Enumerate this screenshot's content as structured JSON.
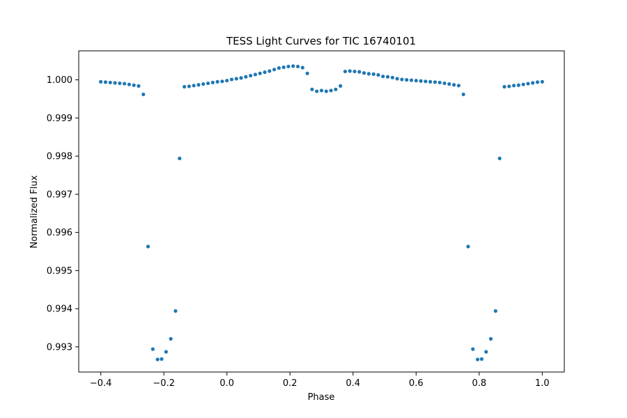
{
  "chart_data": {
    "type": "scatter",
    "title": "TESS Light Curves for TIC 16740101",
    "xlabel": "Phase",
    "ylabel": "Normalized Flux",
    "xlim": [
      -0.47,
      1.07
    ],
    "ylim": [
      0.99234,
      1.00076
    ],
    "x_ticks": [
      -0.4,
      -0.2,
      0.0,
      0.2,
      0.4,
      0.6,
      0.8,
      1.0
    ],
    "x_tick_labels": [
      "−0.4",
      "−0.2",
      "0.0",
      "0.2",
      "0.4",
      "0.6",
      "0.8",
      "1.0"
    ],
    "y_ticks": [
      0.993,
      0.994,
      0.995,
      0.996,
      0.997,
      0.998,
      0.999,
      1.0
    ],
    "y_tick_labels": [
      "0.993",
      "0.994",
      "0.995",
      "0.996",
      "0.997",
      "0.998",
      "0.999",
      "1.000"
    ],
    "grid": false,
    "marker_color": "#1f77b4",
    "series": [
      {
        "points": [
          [
            -0.4,
            0.99995
          ],
          [
            -0.385,
            0.99994
          ],
          [
            -0.37,
            0.99993
          ],
          [
            -0.355,
            0.99992
          ],
          [
            -0.34,
            0.99991
          ],
          [
            -0.325,
            0.9999
          ],
          [
            -0.31,
            0.99988
          ],
          [
            -0.295,
            0.99986
          ],
          [
            -0.28,
            0.99984
          ],
          [
            -0.265,
            0.99962
          ],
          [
            -0.25,
            0.99563
          ],
          [
            -0.235,
            0.99294
          ],
          [
            -0.22,
            0.99267
          ],
          [
            -0.207,
            0.99268
          ],
          [
            -0.193,
            0.99287
          ],
          [
            -0.178,
            0.99321
          ],
          [
            -0.163,
            0.99394
          ],
          [
            -0.15,
            0.99794
          ],
          [
            -0.135,
            0.99982
          ],
          [
            -0.12,
            0.99983
          ],
          [
            -0.105,
            0.99985
          ],
          [
            -0.09,
            0.99987
          ],
          [
            -0.075,
            0.99989
          ],
          [
            -0.06,
            0.99991
          ],
          [
            -0.045,
            0.99993
          ],
          [
            -0.03,
            0.99995
          ],
          [
            -0.015,
            0.99996
          ],
          [
            0.0,
            0.99998
          ],
          [
            0.015,
            1.00001
          ],
          [
            0.03,
            1.00003
          ],
          [
            0.045,
            1.00005
          ],
          [
            0.06,
            1.00008
          ],
          [
            0.075,
            1.00011
          ],
          [
            0.09,
            1.00014
          ],
          [
            0.105,
            1.00017
          ],
          [
            0.12,
            1.0002
          ],
          [
            0.135,
            1.00023
          ],
          [
            0.15,
            1.00027
          ],
          [
            0.165,
            1.00031
          ],
          [
            0.18,
            1.00033
          ],
          [
            0.195,
            1.00035
          ],
          [
            0.21,
            1.00036
          ],
          [
            0.225,
            1.00035
          ],
          [
            0.24,
            1.00032
          ],
          [
            0.255,
            1.00017
          ],
          [
            0.27,
            0.99975
          ],
          [
            0.285,
            0.9997
          ],
          [
            0.3,
            0.99972
          ],
          [
            0.315,
            0.9997
          ],
          [
            0.33,
            0.99972
          ],
          [
            0.345,
            0.99975
          ],
          [
            0.36,
            0.99984
          ],
          [
            0.375,
            1.00022
          ],
          [
            0.39,
            1.00023
          ],
          [
            0.405,
            1.00022
          ],
          [
            0.42,
            1.00021
          ],
          [
            0.435,
            1.00018
          ],
          [
            0.45,
            1.00016
          ],
          [
            0.465,
            1.00015
          ],
          [
            0.48,
            1.00013
          ],
          [
            0.495,
            1.00009
          ],
          [
            0.51,
            1.00008
          ],
          [
            0.525,
            1.00006
          ],
          [
            0.54,
            1.00003
          ],
          [
            0.555,
            1.00001
          ],
          [
            0.57,
            1.0
          ],
          [
            0.585,
            0.99999
          ],
          [
            0.6,
            0.99998
          ],
          [
            0.615,
            0.99997
          ],
          [
            0.63,
            0.99996
          ],
          [
            0.645,
            0.99995
          ],
          [
            0.66,
            0.99994
          ],
          [
            0.675,
            0.99993
          ],
          [
            0.69,
            0.99991
          ],
          [
            0.705,
            0.99989
          ],
          [
            0.72,
            0.99987
          ],
          [
            0.735,
            0.99985
          ],
          [
            0.75,
            0.99962
          ],
          [
            0.765,
            0.99563
          ],
          [
            0.78,
            0.99294
          ],
          [
            0.795,
            0.99267
          ],
          [
            0.808,
            0.99268
          ],
          [
            0.822,
            0.99287
          ],
          [
            0.837,
            0.99321
          ],
          [
            0.852,
            0.99394
          ],
          [
            0.865,
            0.99794
          ],
          [
            0.88,
            0.99982
          ],
          [
            0.895,
            0.99983
          ],
          [
            0.91,
            0.99985
          ],
          [
            0.925,
            0.99986
          ],
          [
            0.94,
            0.99988
          ],
          [
            0.955,
            0.9999
          ],
          [
            0.97,
            0.99992
          ],
          [
            0.985,
            0.99994
          ],
          [
            1.0,
            0.99995
          ]
        ]
      }
    ]
  }
}
